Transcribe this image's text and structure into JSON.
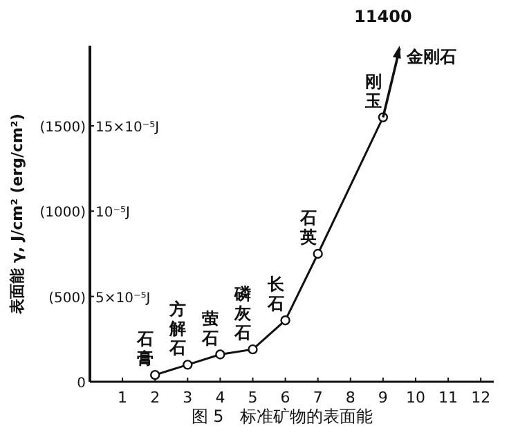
{
  "chart_data": {
    "type": "line",
    "title": "图 5　标准矿物的表面能",
    "ylabel": "表面能 γ, J/cm² (erg/cm²)",
    "x": [
      2,
      3,
      4,
      5,
      6,
      7,
      9
    ],
    "series": [
      {
        "color": "#111111",
        "values": [
          40,
          100,
          160,
          190,
          360,
          750,
          1550
        ]
      }
    ],
    "marker": "circle",
    "line_style": "solid",
    "xlim": [
      0,
      12.4
    ],
    "xticks": [
      1,
      2,
      3,
      4,
      5,
      6,
      7,
      8,
      9,
      10,
      11,
      12
    ],
    "ylim": [
      0,
      1970
    ],
    "yticks": [
      0,
      {
        "value": 500,
        "label": "(500)"
      },
      {
        "value": 1000,
        "label": "(1000)"
      },
      {
        "value": 1500,
        "label": "(1500)"
      }
    ],
    "annotations": [
      {
        "text": "石膏",
        "x": 2,
        "y": 40
      },
      {
        "text": "方解石",
        "x": 3,
        "y": 100
      },
      {
        "text": "萤石",
        "x": 4,
        "y": 160
      },
      {
        "text": "磷灰石",
        "x": 5,
        "y": 190
      },
      {
        "text": "长石",
        "x": 6,
        "y": 360
      },
      {
        "text": "石英",
        "x": 7,
        "y": 750
      },
      {
        "text": "刚玉",
        "x": 9,
        "y": 1550
      },
      "5×10⁻⁵J",
      "10⁻⁵J",
      "15×10⁻⁵J",
      {
        "text": "金刚石",
        "x": 9,
        "y": 1550
      },
      "11400"
    ]
  }
}
